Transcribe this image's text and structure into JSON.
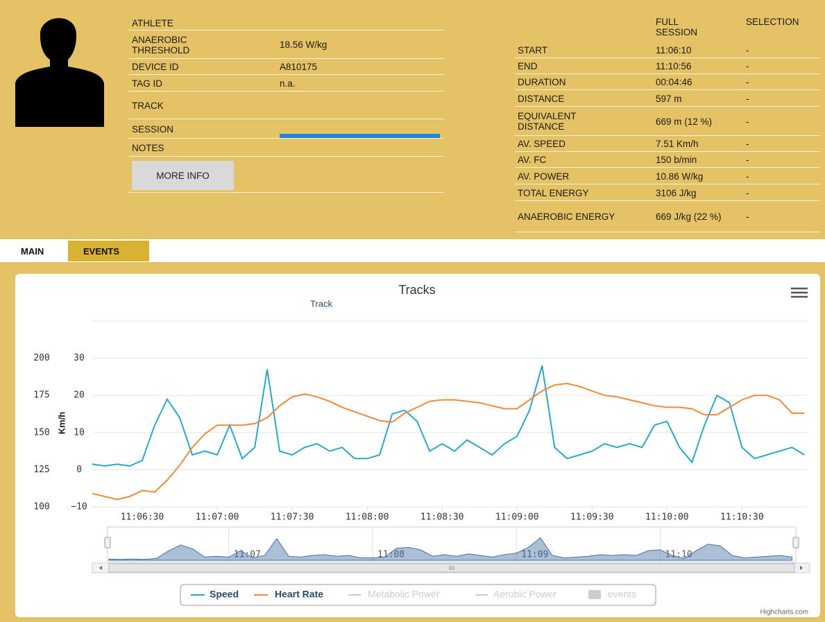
{
  "athlete": {
    "title": "ATHLETE",
    "rows": [
      {
        "label": "ANAEROBIC THRESHOLD",
        "value": "18.56 W/kg"
      },
      {
        "label": "DEVICE ID",
        "value": "A810175"
      },
      {
        "label": "TAG ID",
        "value": "n.a."
      },
      {
        "label": "TRACK"
      },
      {
        "label": "SESSION"
      },
      {
        "label": "NOTES"
      }
    ],
    "button": "MORE INFO"
  },
  "session": {
    "columns": [
      "FULL SESSION",
      "SELECTION"
    ],
    "rows": [
      {
        "label": "START",
        "full": "11:06:10",
        "selection": "-"
      },
      {
        "label": "END",
        "full": "11:10:56",
        "selection": "-"
      },
      {
        "label": "DURATION",
        "full": "00:04:46",
        "selection": "-"
      },
      {
        "label": "DISTANCE",
        "full": "597 m",
        "selection": "-"
      },
      {
        "label": "EQUIVALENT DISTANCE",
        "full": "669 m (12 %)",
        "selection": "-"
      },
      {
        "label": "AV. SPEED",
        "full": "7.51 Km/h",
        "selection": "-"
      },
      {
        "label": "AV. FC",
        "full": "150 b/min",
        "selection": "-"
      },
      {
        "label": "AV. POWER",
        "full": "10.86 W/kg",
        "selection": "-"
      },
      {
        "label": "TOTAL ENERGY",
        "full": "3106 J/kg",
        "selection": "-"
      },
      {
        "label": "ANAEROBIC ENERGY",
        "full": "669 J/kg (22 %)",
        "selection": "-"
      }
    ]
  },
  "tabs": [
    "MAIN",
    "EVENTS"
  ],
  "chart_data": {
    "type": "line",
    "title": "Tracks",
    "subtitle": "Track",
    "ylabel": "Km/h",
    "credits": "Highcharts.com",
    "x": [
      "11:06:10",
      "11:06:15",
      "11:06:20",
      "11:06:25",
      "11:06:30",
      "11:06:35",
      "11:06:40",
      "11:06:45",
      "11:06:50",
      "11:06:55",
      "11:07:00",
      "11:07:05",
      "11:07:10",
      "11:07:15",
      "11:07:20",
      "11:07:25",
      "11:07:30",
      "11:07:35",
      "11:07:40",
      "11:07:45",
      "11:07:50",
      "11:07:55",
      "11:08:00",
      "11:08:05",
      "11:08:10",
      "11:08:15",
      "11:08:20",
      "11:08:25",
      "11:08:30",
      "11:08:35",
      "11:08:40",
      "11:08:45",
      "11:08:50",
      "11:08:55",
      "11:09:00",
      "11:09:05",
      "11:09:10",
      "11:09:15",
      "11:09:20",
      "11:09:25",
      "11:09:30",
      "11:09:35",
      "11:09:40",
      "11:09:45",
      "11:09:50",
      "11:09:55",
      "11:10:00",
      "11:10:05",
      "11:10:10",
      "11:10:15",
      "11:10:20",
      "11:10:25",
      "11:10:30",
      "11:10:35",
      "11:10:40",
      "11:10:45",
      "11:10:50",
      "11:10:55"
    ],
    "series": [
      {
        "name": "Speed",
        "color": "#2aa7c7",
        "values": [
          1.5,
          1,
          1.5,
          1,
          2.5,
          12,
          19,
          14,
          4,
          5,
          4,
          12,
          3,
          6,
          27,
          5,
          4,
          6,
          7,
          5,
          6,
          3,
          3,
          4,
          15,
          16,
          13,
          5,
          7,
          5,
          8,
          6,
          4,
          7,
          9,
          16,
          28,
          6,
          3,
          4,
          5,
          7,
          6,
          7,
          6,
          12,
          13,
          6,
          2,
          12,
          20,
          18,
          6,
          3,
          4,
          5,
          6,
          4
        ]
      },
      {
        "name": "Heart Rate",
        "color": "#f08a3a",
        "axis": "y2",
        "values": [
          109,
          107,
          105,
          107,
          111,
          110,
          118,
          128,
          140,
          149,
          155,
          155,
          155,
          156,
          160,
          168,
          174,
          176,
          174,
          171,
          167,
          164,
          161,
          158,
          157,
          163,
          167,
          171,
          172,
          172,
          171,
          170,
          168,
          166,
          166,
          172,
          178,
          182,
          183,
          181,
          178,
          175,
          174,
          172,
          170,
          168,
          167,
          167,
          166,
          162,
          162,
          167,
          172,
          175,
          175,
          172,
          163,
          163
        ]
      }
    ],
    "hidden_series": [
      {
        "name": "Metabolic Power"
      },
      {
        "name": "Aerobic Power"
      },
      {
        "name": "events"
      }
    ],
    "xlim": [
      "11:06:10",
      "11:10:56"
    ],
    "xticks": [
      "11:06:30",
      "11:07:00",
      "11:07:30",
      "11:08:00",
      "11:08:30",
      "11:09:00",
      "11:09:30",
      "11:10:00",
      "11:10:30"
    ],
    "ylim": [
      -10,
      40
    ],
    "yticks": [
      {
        "value": -10,
        "label": "−10"
      },
      0,
      10,
      20,
      30
    ],
    "y2lim": [
      100,
      225
    ],
    "y2ticks": [
      100,
      125,
      150,
      175,
      200
    ],
    "grid": true,
    "navigator": {
      "ticks": [
        {
          "value": "11:07:00",
          "label": "11:07"
        },
        {
          "value": "11:08:00",
          "label": "11:08"
        },
        {
          "value": "11:09:00",
          "label": "11:09"
        },
        {
          "value": "11:10:00",
          "label": "11:10"
        }
      ]
    }
  }
}
